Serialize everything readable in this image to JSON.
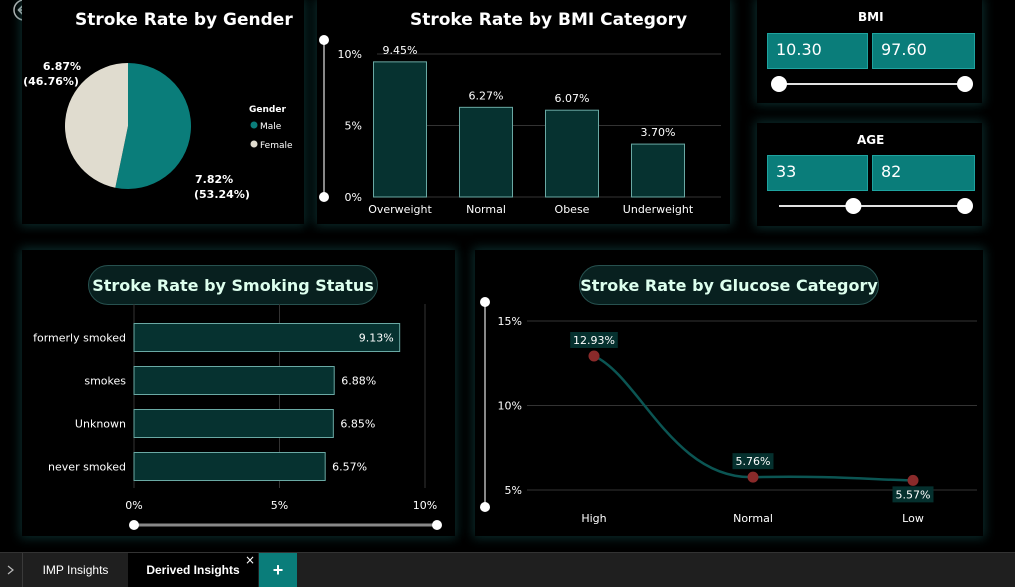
{
  "colors": {
    "teal": "#0a7d7a",
    "teal_dark": "#063230",
    "bar_border": "#6aa9a4",
    "pie_female": "#e0dccf",
    "dot_red": "#8a2a2a"
  },
  "back_icon": "back-arrow-icon",
  "gender_panel": {
    "title": "Stroke Rate by Gender",
    "legend_title": "Gender",
    "legend": [
      "Male",
      "Female"
    ],
    "female_label_1": "6.87%",
    "female_label_2": "(46.76%)",
    "male_label_1": "7.82%",
    "male_label_2": "(53.24%)"
  },
  "bmi_panel": {
    "title": "Stroke Rate by BMI Category"
  },
  "smoking_panel": {
    "title": "Stroke Rate by Smoking Status"
  },
  "glucose_panel": {
    "title": "Stroke Rate by Glucose Category"
  },
  "bmi_slicer": {
    "label": "BMI",
    "min": "10.30",
    "max": "97.60",
    "low_fraction": 0.0,
    "high_fraction": 1.0
  },
  "age_slicer": {
    "label": "AGE",
    "min": "33",
    "max": "82",
    "low_fraction": 0.4,
    "high_fraction": 1.0
  },
  "tabs": {
    "tab1": "IMP Insights",
    "tab2": "Derived Insights",
    "close": "×",
    "add": "+"
  },
  "chart_data": [
    {
      "type": "pie",
      "title": "Stroke Rate by Gender",
      "categories": [
        "Male",
        "Female"
      ],
      "values": [
        7.82,
        6.87
      ],
      "labels": [
        "7.82% (53.24%)",
        "6.87% (46.76%)"
      ]
    },
    {
      "type": "bar",
      "title": "Stroke Rate by BMI Category",
      "categories": [
        "Overweight",
        "Normal",
        "Obese",
        "Underweight"
      ],
      "values": [
        9.45,
        6.27,
        6.07,
        3.7
      ],
      "labels": [
        "9.45%",
        "6.27%",
        "6.07%",
        "3.70%"
      ],
      "yticks": [
        "0%",
        "5%",
        "10%"
      ],
      "ylim": [
        0,
        10
      ]
    },
    {
      "type": "bar",
      "orientation": "horizontal",
      "title": "Stroke Rate by Smoking Status",
      "categories": [
        "formerly smoked",
        "smokes",
        "Unknown",
        "never smoked"
      ],
      "values": [
        9.13,
        6.88,
        6.85,
        6.57
      ],
      "labels": [
        "9.13%",
        "6.88%",
        "6.85%",
        "6.57%"
      ],
      "xticks": [
        "0%",
        "5%",
        "10%"
      ],
      "xlim": [
        0,
        10
      ]
    },
    {
      "type": "line",
      "title": "Stroke Rate by Glucose Category",
      "categories": [
        "High",
        "Normal",
        "Low"
      ],
      "values": [
        12.93,
        5.76,
        5.57
      ],
      "labels": [
        "12.93%",
        "5.76%",
        "5.57%"
      ],
      "yticks": [
        "5%",
        "10%",
        "15%"
      ],
      "ylim": [
        5,
        15
      ]
    }
  ]
}
